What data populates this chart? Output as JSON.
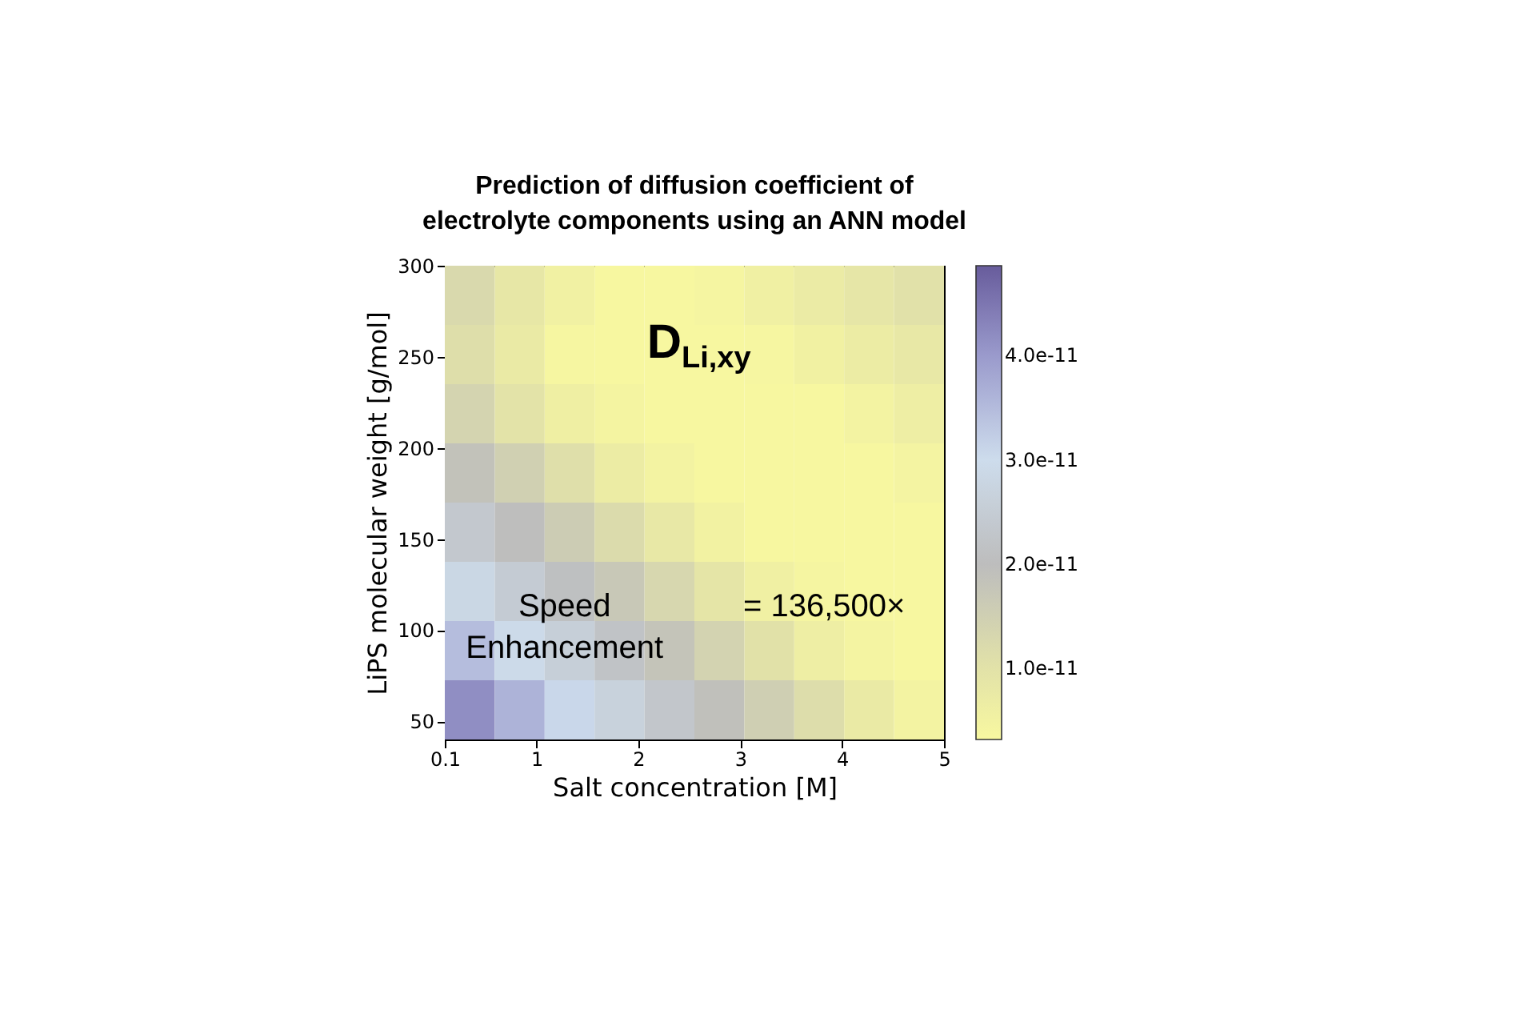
{
  "chart_data": {
    "type": "heatmap",
    "title": "Prediction of diffusion coefficient of electrolyte components using an ANN model",
    "xlabel": "Salt concentration [M]",
    "ylabel": "LiPS molecular weight [g/mol]",
    "x": [
      0.345,
      0.835,
      1.325,
      1.815,
      2.305,
      2.795,
      3.285,
      3.775,
      4.265,
      4.755
    ],
    "y": [
      283.75,
      251.25,
      218.75,
      186.25,
      153.75,
      121.25,
      88.75,
      56.25
    ],
    "xlim": [
      0.1,
      5
    ],
    "xticks": [
      0.1,
      1,
      2,
      3,
      4,
      5
    ],
    "ylim": [
      40,
      300
    ],
    "yticks": [
      50,
      100,
      150,
      200,
      250,
      300
    ],
    "clim": [
      3.2e-12,
      4.86e-11
    ],
    "cticks": [
      {
        "value": 1e-11,
        "label": "1.0e-11"
      },
      {
        "value": 2e-11,
        "label": "2.0e-11"
      },
      {
        "value": 3e-11,
        "label": "3.0e-11"
      },
      {
        "value": 4e-11,
        "label": "4.0e-11"
      }
    ],
    "cells": [
      [
        1.25e-11,
        8.5e-12,
        5.5e-12,
        3.5e-12,
        3.5e-12,
        4.2e-12,
        5.7e-12,
        7.2e-12,
        8.8e-12,
        1.03e-11
      ],
      [
        1.1e-11,
        7.5e-12,
        3.9e-12,
        3.5e-12,
        3.5e-12,
        3.5e-12,
        3.8e-12,
        5.3e-12,
        6.8e-12,
        8.3e-12
      ],
      [
        1.37e-11,
        9.8e-12,
        6e-12,
        4.3e-12,
        3.5e-12,
        3.5e-12,
        3.5e-12,
        3.5e-12,
        4.9e-12,
        6.4e-12
      ],
      [
        1.87e-11,
        1.48e-11,
        1.09e-11,
        7e-12,
        4.8e-12,
        3.5e-12,
        3.5e-12,
        3.5e-12,
        3.5e-12,
        4.5e-12
      ],
      [
        2.36e-11,
        1.98e-11,
        1.59e-11,
        1.2e-11,
        8.1e-12,
        5.2e-12,
        3.6e-12,
        3.5e-12,
        3.5e-12,
        3.5e-12
      ],
      [
        2.84e-11,
        2.46e-11,
        2.09e-11,
        1.7e-11,
        1.31e-11,
        9.1e-12,
        5.7e-12,
        4e-12,
        3.5e-12,
        3.5e-12
      ],
      [
        3.47e-11,
        2.94e-11,
        2.57e-11,
        2.19e-11,
        1.81e-11,
        1.41e-11,
        1.02e-11,
        6.3e-12,
        4.5e-12,
        3.5e-12
      ],
      [
        4.17e-11,
        3.62e-11,
        3.07e-11,
        2.67e-11,
        2.29e-11,
        1.91e-11,
        1.52e-11,
        1.13e-11,
        7.4e-12,
        4.9e-12
      ]
    ],
    "annotations": [
      "D$_{Li,xy}$",
      "Speed Enhancement",
      "= 136,500×"
    ]
  }
}
